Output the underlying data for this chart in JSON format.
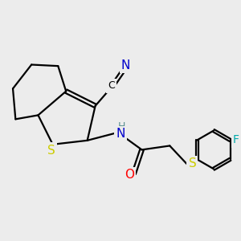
{
  "background_color": "#ececec",
  "bond_color": "#000000",
  "atom_colors": {
    "N": "#0000cc",
    "O": "#ff0000",
    "S": "#cccc00",
    "F": "#00aaaa",
    "C": "#000000",
    "H": "#5a9090"
  },
  "figsize": [
    3.0,
    3.0
  ],
  "dpi": 100
}
